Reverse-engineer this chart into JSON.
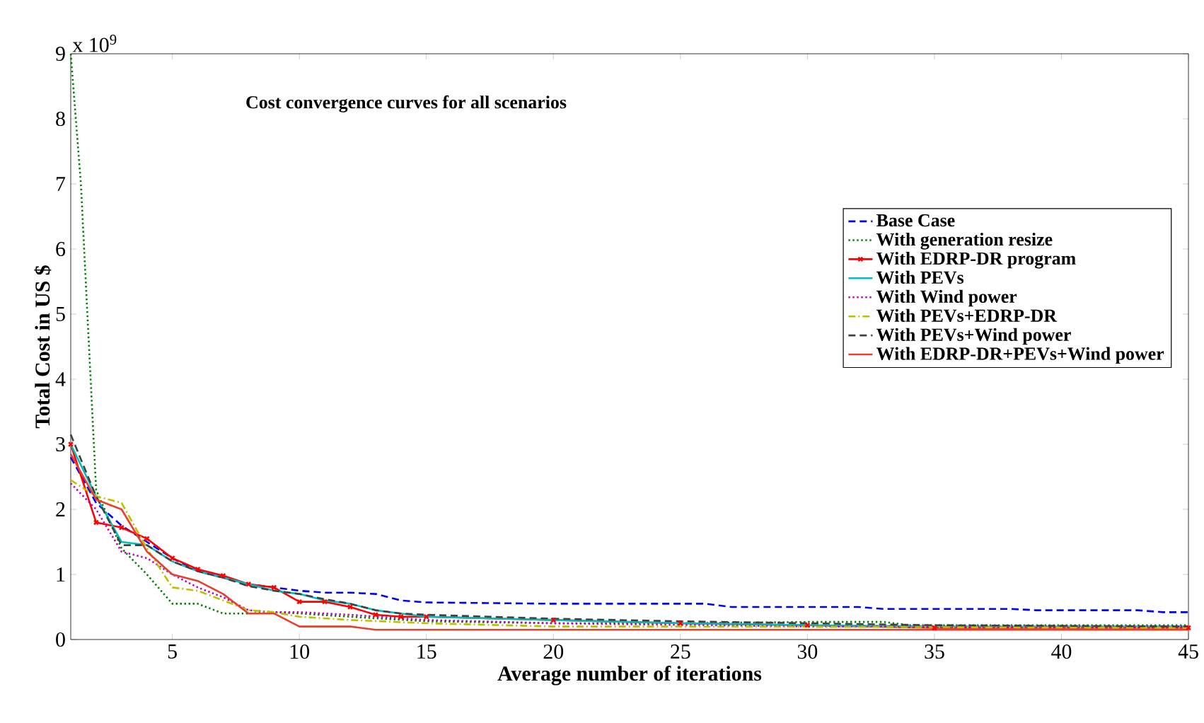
{
  "chart_data": {
    "type": "line",
    "title": "Cost convergence curves for all scenarios",
    "xlabel": "Average number of iterations",
    "ylabel": "Total Cost in US $",
    "annotations": [
      "x 10$^{9}$"
    ],
    "xlim": [
      1,
      45
    ],
    "xticks": [
      5,
      10,
      15,
      20,
      25,
      30,
      35,
      40,
      45
    ],
    "ylim": [
      0,
      9
    ],
    "yticks": [
      0,
      1,
      2,
      3,
      4,
      5,
      6,
      7,
      8,
      9
    ],
    "grid": false,
    "legend": "right",
    "series": [
      {
        "name": "Base Case",
        "color": "#0000ff",
        "line_style": "dashed",
        "x": [
          1,
          2,
          3,
          4,
          5,
          6,
          7,
          8,
          9,
          10,
          11,
          12,
          13,
          14,
          15,
          20,
          25,
          26,
          27,
          32,
          33,
          38,
          39,
          43,
          44,
          45
        ],
        "values": [
          2.8,
          2.1,
          1.75,
          1.5,
          1.25,
          1.05,
          0.95,
          0.85,
          0.8,
          0.75,
          0.72,
          0.72,
          0.7,
          0.6,
          0.57,
          0.55,
          0.55,
          0.55,
          0.5,
          0.5,
          0.47,
          0.47,
          0.45,
          0.45,
          0.42,
          0.42
        ]
      },
      {
        "name": "With generation resize",
        "color": "#008000",
        "line_style": "dotted",
        "x": [
          1,
          1.4,
          2,
          3,
          4,
          5,
          6,
          7,
          8,
          9,
          10,
          12,
          15,
          20,
          25,
          30,
          33,
          34,
          45
        ],
        "values": [
          9.0,
          7.0,
          2.3,
          1.4,
          1.0,
          0.55,
          0.55,
          0.4,
          0.4,
          0.42,
          0.4,
          0.35,
          0.28,
          0.25,
          0.25,
          0.27,
          0.27,
          0.22,
          0.22
        ]
      },
      {
        "name": "With EDRP-DR program",
        "color": "#ff0000",
        "line_style": "solid",
        "marker": "cross",
        "x": [
          1,
          2,
          3,
          4,
          5,
          6,
          7,
          8,
          9,
          10,
          11,
          12,
          13,
          14,
          15,
          20,
          25,
          30,
          35,
          45
        ],
        "values": [
          3.0,
          1.8,
          1.72,
          1.55,
          1.25,
          1.08,
          0.98,
          0.85,
          0.8,
          0.58,
          0.58,
          0.5,
          0.38,
          0.35,
          0.35,
          0.3,
          0.25,
          0.22,
          0.18,
          0.18
        ]
      },
      {
        "name": "With PEVs",
        "color": "#00bfbf",
        "line_style": "solid",
        "x": [
          1,
          2,
          3,
          4,
          5,
          6,
          7,
          8,
          9,
          10,
          11,
          12,
          13,
          14,
          15,
          20,
          25,
          30,
          35,
          45
        ],
        "values": [
          3.0,
          2.2,
          1.5,
          1.45,
          1.2,
          1.05,
          0.95,
          0.85,
          0.75,
          0.7,
          0.6,
          0.55,
          0.45,
          0.4,
          0.35,
          0.3,
          0.25,
          0.22,
          0.2,
          0.2
        ]
      },
      {
        "name": "With Wind power",
        "color": "#bf00bf",
        "line_style": "dotted",
        "x": [
          1,
          2,
          3,
          4,
          5,
          6,
          7,
          8,
          9,
          10,
          12,
          15,
          20,
          30,
          45
        ],
        "values": [
          2.4,
          2.0,
          1.35,
          1.25,
          1.0,
          0.8,
          0.65,
          0.45,
          0.42,
          0.42,
          0.38,
          0.3,
          0.25,
          0.2,
          0.2
        ]
      },
      {
        "name": "With PEVs+EDRP-DR",
        "color": "#bfbf00",
        "line_style": "dashdot",
        "x": [
          1,
          2,
          3,
          4,
          5,
          6,
          7,
          8,
          9,
          10,
          12,
          15,
          20,
          25,
          45
        ],
        "values": [
          2.45,
          2.2,
          2.1,
          1.4,
          0.8,
          0.75,
          0.6,
          0.45,
          0.42,
          0.35,
          0.3,
          0.25,
          0.2,
          0.2,
          0.18
        ]
      },
      {
        "name": "With PEVs+Wind power",
        "color": "#404040",
        "line_style": "dashed",
        "x": [
          1,
          2,
          3,
          4,
          5,
          6,
          7,
          8,
          9,
          10,
          11,
          12,
          13,
          14,
          15,
          20,
          25,
          30,
          35,
          45
        ],
        "values": [
          3.15,
          2.2,
          1.45,
          1.45,
          1.2,
          1.05,
          0.95,
          0.82,
          0.75,
          0.7,
          0.62,
          0.55,
          0.45,
          0.4,
          0.38,
          0.32,
          0.28,
          0.25,
          0.22,
          0.2
        ]
      },
      {
        "name": "With EDRP-DR+PEVs+Wind power",
        "color": "#e8402a",
        "line_style": "solid",
        "x": [
          1,
          2,
          3,
          4,
          5,
          6,
          7,
          8,
          9,
          10,
          12,
          13,
          20,
          45
        ],
        "values": [
          2.85,
          2.15,
          2.0,
          1.35,
          1.0,
          0.9,
          0.7,
          0.4,
          0.4,
          0.2,
          0.2,
          0.15,
          0.15,
          0.15
        ]
      }
    ]
  }
}
